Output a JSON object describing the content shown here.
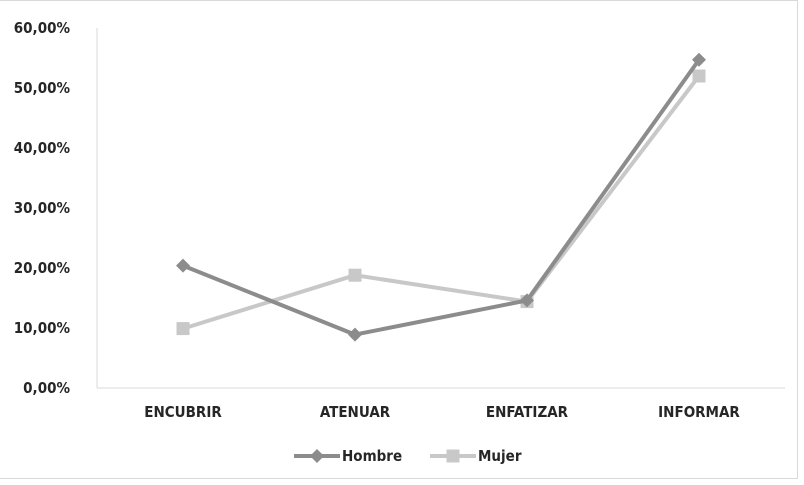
{
  "chart_data": {
    "type": "line",
    "categories": [
      "ENCUBRIR",
      "ATENUAR",
      "ENFATIZAR",
      "INFORMAR"
    ],
    "series": [
      {
        "name": "Hombre",
        "values": [
          20.4,
          8.9,
          14.6,
          54.7
        ],
        "color": "#8c8c8c",
        "marker": "diamond"
      },
      {
        "name": "Mujer",
        "values": [
          9.9,
          18.8,
          14.4,
          52.0
        ],
        "color": "#c8c8c8",
        "marker": "square"
      }
    ],
    "y_ticks": [
      "0,00%",
      "10,00%",
      "20,00%",
      "30,00%",
      "40,00%",
      "50,00%",
      "60,00%"
    ],
    "ylim": [
      0,
      60
    ],
    "grid": false,
    "legend_position": "bottom"
  }
}
